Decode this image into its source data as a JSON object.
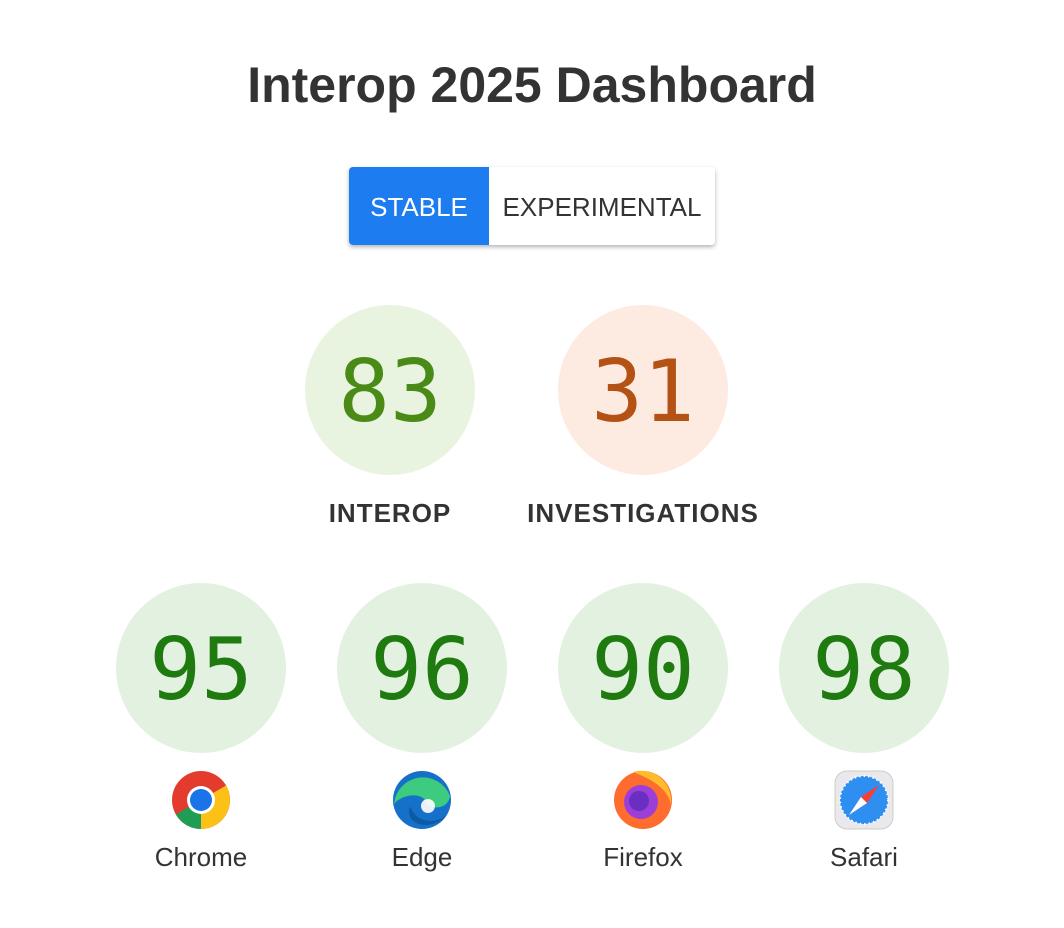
{
  "header": {
    "title": "Interop 2025 Dashboard"
  },
  "toggle": {
    "options": [
      "STABLE",
      "EXPERIMENTAL"
    ]
  },
  "summary": [
    {
      "score": 83,
      "label": "INTEROP"
    },
    {
      "score": 31,
      "label": "INVESTIGATIONS"
    }
  ],
  "browsers": [
    {
      "score": 95,
      "name": "Chrome"
    },
    {
      "score": 96,
      "name": "Edge"
    },
    {
      "score": 90,
      "name": "Firefox"
    },
    {
      "score": 98,
      "name": "Safari"
    }
  ]
}
